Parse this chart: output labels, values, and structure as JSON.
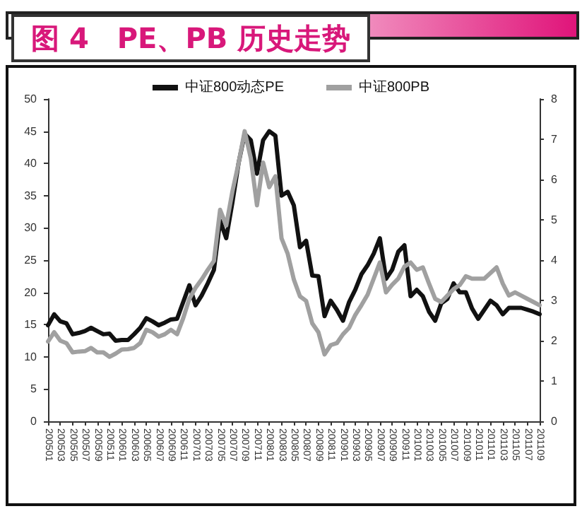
{
  "chart_data": {
    "type": "line",
    "title": "图 4　PE、PB 历史走势",
    "categories": [
      "200501",
      null,
      "200503",
      null,
      "200505",
      null,
      "200507",
      null,
      "200509",
      null,
      "200511",
      null,
      "200601",
      null,
      "200603",
      null,
      "200605",
      null,
      "200607",
      null,
      "200609",
      null,
      "200611",
      null,
      "200701",
      null,
      "200703",
      null,
      "200705",
      null,
      "200707",
      null,
      "200709",
      null,
      "200711",
      null,
      "200801",
      null,
      "200803",
      null,
      "200805",
      null,
      "200807",
      null,
      "200809",
      null,
      "200811",
      null,
      "200901",
      null,
      "200903",
      null,
      "200905",
      null,
      "200907",
      null,
      "200909",
      null,
      "200911",
      null,
      "201001",
      null,
      "201003",
      null,
      "201005",
      null,
      "201007",
      null,
      "201009",
      null,
      "201011",
      null,
      "201101",
      null,
      "201103",
      null,
      "201105",
      null,
      "201107",
      null,
      "201109"
    ],
    "series": [
      {
        "name": "中证800动态PE",
        "color": "#111111",
        "values": [
          14.9,
          16.6,
          15.5,
          15.2,
          13.5,
          13.7,
          14,
          14.5,
          14,
          13.5,
          13.6,
          12.5,
          12.6,
          12.6,
          13.5,
          14.5,
          16,
          15.5,
          14.9,
          15.3,
          15.8,
          15.9,
          18.5,
          21.1,
          18,
          19.5,
          21.4,
          23.5,
          31.1,
          28.4,
          33.9,
          40,
          44.6,
          43.6,
          38.4,
          43.6,
          45,
          44.3,
          35,
          35.6,
          33.5,
          27,
          28,
          22.6,
          22.5,
          16.3,
          18.7,
          17.3,
          15.6,
          18.5,
          20.4,
          22.8,
          24.2,
          26,
          28.4,
          22.1,
          23.5,
          26.3,
          27.3,
          19.4,
          20.4,
          19.4,
          17,
          15.6,
          18.3,
          19,
          21.4,
          20,
          20,
          17.5,
          15.9,
          17.3,
          18.7,
          18,
          16.6,
          17.6,
          17.6,
          17.6,
          17.3,
          17,
          16.6
        ]
      },
      {
        "name": "中证800PB",
        "color": "#a0a0a0",
        "axis": "y2",
        "values": [
          1.98,
          2.21,
          2.0,
          1.94,
          1.71,
          1.73,
          1.74,
          1.82,
          1.71,
          1.71,
          1.6,
          1.68,
          1.78,
          1.79,
          1.82,
          1.94,
          2.27,
          2.21,
          2.1,
          2.16,
          2.27,
          2.16,
          2.56,
          3.04,
          3.31,
          3.52,
          3.76,
          3.98,
          5.25,
          4.86,
          5.7,
          6.4,
          7.2,
          6.53,
          5.36,
          6.42,
          5.81,
          6.08,
          4.54,
          4.16,
          3.52,
          3.1,
          2.99,
          2.43,
          2.21,
          1.66,
          1.89,
          1.94,
          2.16,
          2.32,
          2.64,
          2.88,
          3.14,
          3.54,
          3.94,
          3.2,
          3.39,
          3.54,
          3.84,
          3.94,
          3.76,
          3.82,
          3.42,
          3.04,
          2.96,
          3.12,
          3.28,
          3.38,
          3.6,
          3.54,
          3.54,
          3.54,
          3.68,
          3.82,
          3.42,
          3.12,
          3.2,
          3.12,
          3.04,
          2.96,
          2.88
        ]
      }
    ],
    "ylim": [
      0,
      50
    ],
    "yticks": [
      0,
      5,
      10,
      15,
      20,
      25,
      30,
      35,
      40,
      45,
      50
    ],
    "y2lim": [
      0,
      8
    ],
    "y2ticks": [
      0,
      1,
      2,
      3,
      4,
      5,
      6,
      7,
      8
    ],
    "legend": "top"
  }
}
